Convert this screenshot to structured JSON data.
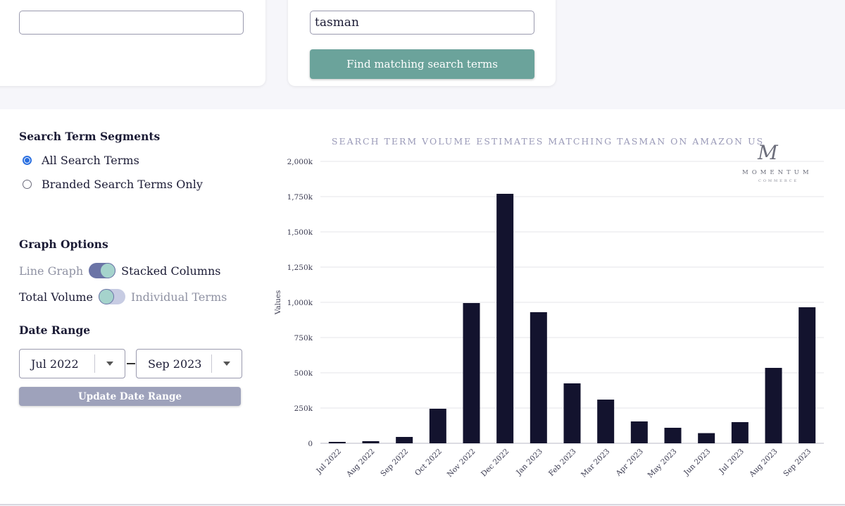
{
  "search": {
    "left_value": "",
    "term_value": "tasman",
    "find_button": "Find matching search terms"
  },
  "segments": {
    "heading": "Search Term Segments",
    "options": [
      "All Search Terms",
      "Branded Search Terms Only"
    ],
    "selected": "All Search Terms"
  },
  "graph_options": {
    "heading": "Graph Options",
    "graph_toggle": {
      "left": "Line Graph",
      "right": "Stacked Columns",
      "selected": "Stacked Columns"
    },
    "volume_toggle": {
      "left": "Total Volume",
      "right": "Individual Terms",
      "selected": "Total Volume"
    }
  },
  "date_range": {
    "heading": "Date Range",
    "start": "Jul 2022",
    "end": "Sep 2023",
    "update_button": "Update Date Range"
  },
  "logo": {
    "mark": "M",
    "word": "MOMENTUM",
    "sub": "COMMERCE"
  },
  "colors": {
    "bar": "#13132e",
    "accent": "#6ba39b",
    "muted_button": "#9ea2bb",
    "title": "#9a9ab8"
  },
  "chart_data": {
    "type": "bar",
    "title": "SEARCH TERM VOLUME ESTIMATES MATCHING TASMAN ON AMAZON US",
    "xlabel": "",
    "ylabel": "Values",
    "ylim": [
      0,
      2000000
    ],
    "yticks": [
      0,
      250000,
      500000,
      750000,
      1000000,
      1250000,
      1500000,
      1750000,
      2000000
    ],
    "ytick_labels": [
      "0",
      "250k",
      "500k",
      "750k",
      "1,000k",
      "1,250k",
      "1,500k",
      "1,750k",
      "2,000k"
    ],
    "grid": true,
    "categories": [
      "Jul 2022",
      "Aug 2022",
      "Sep 2022",
      "Oct 2022",
      "Nov 2022",
      "Dec 2022",
      "Jan 2023",
      "Feb 2023",
      "Mar 2023",
      "Apr 2023",
      "May 2023",
      "Jun 2023",
      "Jul 2023",
      "Aug 2023",
      "Sep 2023"
    ],
    "values": [
      10000,
      15000,
      45000,
      245000,
      995000,
      1770000,
      930000,
      425000,
      310000,
      155000,
      110000,
      72000,
      150000,
      535000,
      965000
    ]
  }
}
